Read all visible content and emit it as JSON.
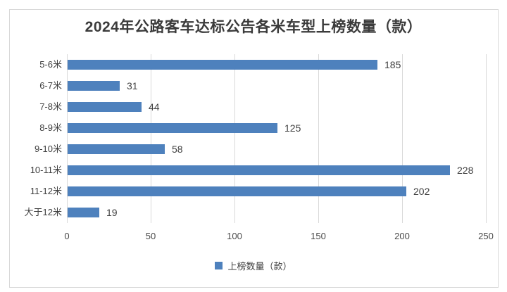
{
  "title": "2024年公路客车达标公告各米车型上榜数量（款）",
  "legend": {
    "label": "上榜数量（款）"
  },
  "colors": {
    "bar": "#4e81bd",
    "grid": "#d9d9d9",
    "border": "#d9d9d9",
    "title_text": "#3b3b3b",
    "label_text": "#404040"
  },
  "chart_data": {
    "type": "bar",
    "orientation": "horizontal",
    "title": "2024年公路客车达标公告各米车型上榜数量（款）",
    "categories": [
      "5-6米",
      "6-7米",
      "7-8米",
      "8-9米",
      "9-10米",
      "10-11米",
      "11-12米",
      "大于12米"
    ],
    "values": [
      185,
      31,
      44,
      125,
      58,
      228,
      202,
      19
    ],
    "series_name": "上榜数量（款）",
    "xlabel": "",
    "ylabel": "",
    "xlim": [
      0,
      250
    ],
    "xticks": [
      0,
      50,
      100,
      150,
      200,
      250
    ],
    "grid": "vertical",
    "data_labels": true,
    "legend_position": "bottom-center"
  }
}
